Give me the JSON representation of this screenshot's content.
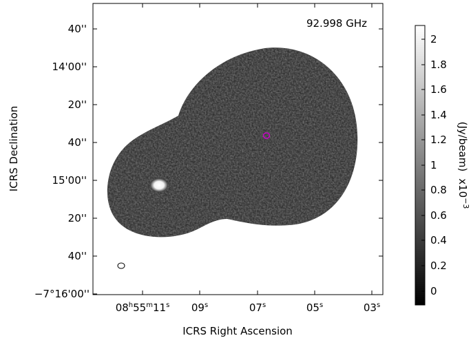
{
  "frequency_label": "92.998 GHz",
  "x_axis": {
    "title": "ICRS Right Ascension",
    "ticks": [
      {
        "main": "08",
        "sup1": "h",
        "mid": "55",
        "sup2": "m",
        "sec": "11",
        "sup3": "s"
      },
      {
        "sec": "09",
        "sup3": "s"
      },
      {
        "sec": "07",
        "sup3": "s"
      },
      {
        "sec": "05",
        "sup3": "s"
      },
      {
        "sec": "03",
        "sup3": "s"
      }
    ]
  },
  "y_axis": {
    "title": "ICRS Declination",
    "ticks": [
      "40''",
      "14'00''",
      "20''",
      "40''",
      "15'00''",
      "20''",
      "40''",
      "−7°16'00''"
    ]
  },
  "colorbar": {
    "ticks": [
      "2",
      "1.8",
      "1.6",
      "1.4",
      "1.2",
      "1",
      "0.8",
      "0.6",
      "0.4",
      "0.2",
      "0"
    ],
    "unit_label": "(Jy/beam)",
    "scale_label": "x10",
    "scale_exp": "−3",
    "colormap": {
      "low": "#000000",
      "high": "#ffffff"
    }
  },
  "markers": {
    "target_circle_color": "#cc00cc",
    "beam_ellipse_color": "#000000"
  }
}
